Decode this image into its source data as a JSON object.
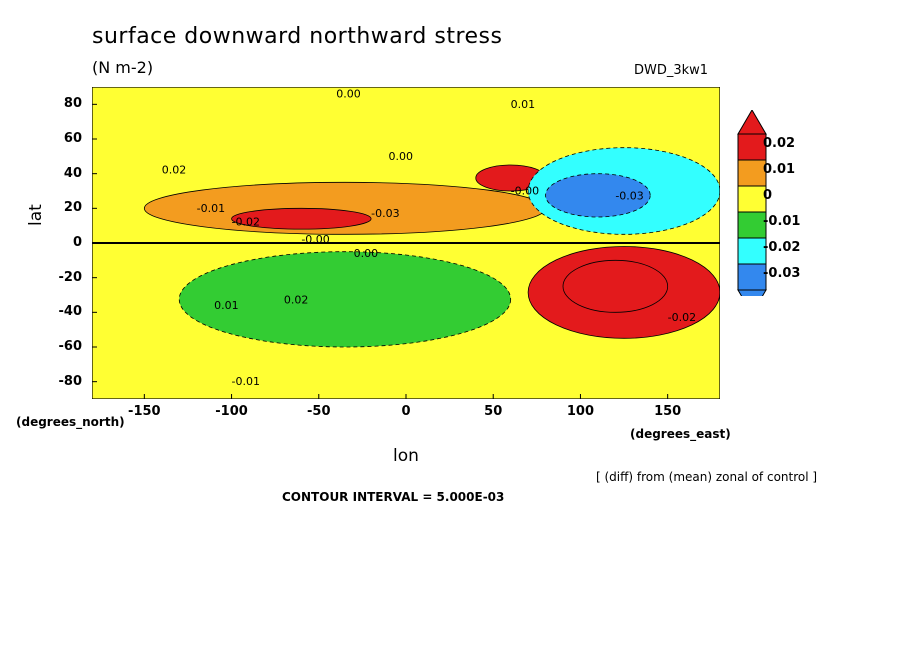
{
  "chart_data": {
    "type": "heatmap",
    "title": "surface downward northward stress",
    "units": "(N m-2)",
    "dataset": "DWD_3kw1",
    "xlabel": "lon",
    "ylabel": "lat",
    "x_unit_label": "(degrees_east)",
    "y_unit_label": "(degrees_north)",
    "xlim": [
      -180,
      180
    ],
    "ylim": [
      -90,
      90
    ],
    "xticks": [
      "-150",
      "-100",
      "-50",
      "0",
      "50",
      "100",
      "150"
    ],
    "yticks": [
      "80",
      "60",
      "40",
      "20",
      "0",
      "-20",
      "-40",
      "-60",
      "-80"
    ],
    "colorbar": {
      "levels": [
        "0.02",
        "0.01",
        "0",
        "-0.01",
        "-0.02",
        "-0.03"
      ],
      "colors": [
        "#e31a1c",
        "#f39c1f",
        "#ffff33",
        "#33cc33",
        "#33ffff",
        "#3388ee"
      ]
    },
    "contour_labels": [
      "0.00",
      "0.01",
      "0.02",
      "-0.01",
      "-0.02",
      "-0.03",
      "-0.00"
    ],
    "regions": [
      {
        "lon": [
          -180,
          180
        ],
        "lat": [
          -90,
          90
        ],
        "value": 0.0
      },
      {
        "lon": [
          -130,
          60
        ],
        "lat": [
          -60,
          -5
        ],
        "value": -0.008
      },
      {
        "lon": [
          -150,
          80
        ],
        "lat": [
          5,
          35
        ],
        "value": 0.008
      },
      {
        "lon": [
          -100,
          -20
        ],
        "lat": [
          8,
          20
        ],
        "value": 0.018
      },
      {
        "lon": [
          40,
          80
        ],
        "lat": [
          30,
          45
        ],
        "value": 0.017
      },
      {
        "lon": [
          70,
          180
        ],
        "lat": [
          5,
          55
        ],
        "value": -0.02
      },
      {
        "lon": [
          80,
          140
        ],
        "lat": [
          15,
          40
        ],
        "value": -0.028
      },
      {
        "lon": [
          70,
          180
        ],
        "lat": [
          -55,
          -2
        ],
        "value": 0.016
      },
      {
        "lon": [
          90,
          150
        ],
        "lat": [
          -40,
          -10
        ],
        "value": 0.022
      }
    ]
  },
  "footer": {
    "diff_note": "[ (diff) from (mean) zonal of control ]",
    "contour_interval": "CONTOUR INTERVAL = 5.000E-03"
  }
}
